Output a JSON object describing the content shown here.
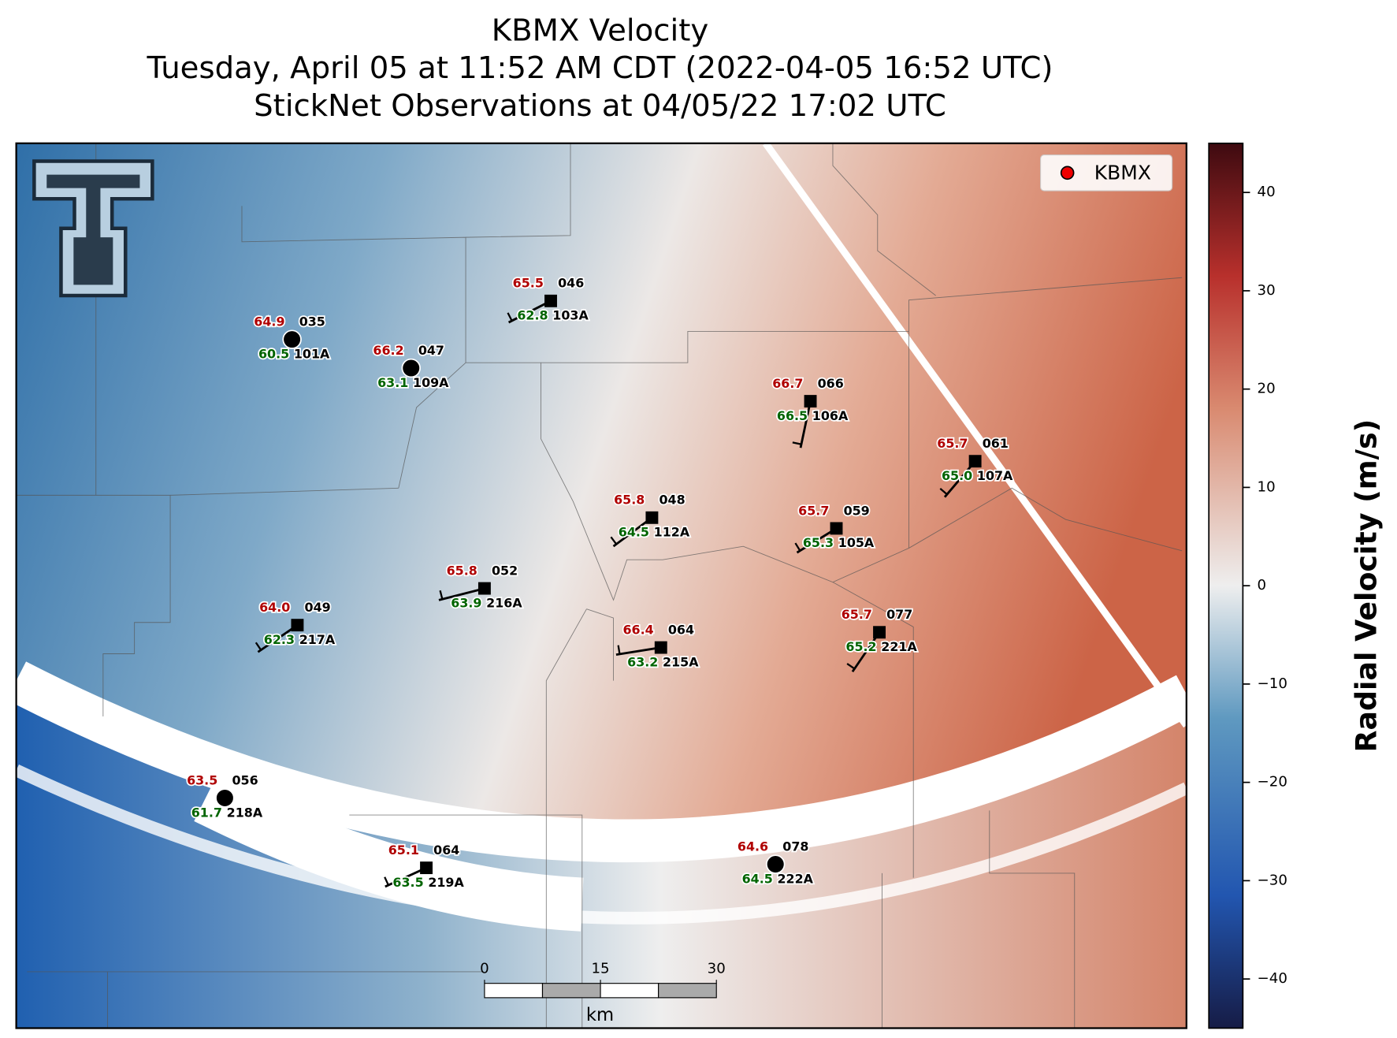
{
  "title": [
    "KBMX Velocity",
    "Tuesday, April 05 at 11:52 AM CDT (2022-04-05 16:52 UTC)",
    "StickNet Observations at 04/05/22 17:02 UTC"
  ],
  "legend": "KBMX",
  "stations": [
    {
      "temp": "64.9",
      "dew": "60.5",
      "code": "035",
      "id": "101A"
    },
    {
      "temp": "66.2",
      "dew": "63.1",
      "code": "047",
      "id": "109A"
    },
    {
      "temp": "65.5",
      "dew": "62.8",
      "code": "046",
      "id": "103A"
    },
    {
      "temp": "66.7",
      "dew": "66.5",
      "code": "066",
      "id": "106A"
    },
    {
      "temp": "65.7",
      "dew": "65.0",
      "code": "061",
      "id": "107A"
    },
    {
      "temp": "65.8",
      "dew": "64.5",
      "code": "048",
      "id": "112A"
    },
    {
      "temp": "65.7",
      "dew": "65.3",
      "code": "059",
      "id": "105A"
    },
    {
      "temp": "65.8",
      "dew": "63.9",
      "code": "052",
      "id": "216A"
    },
    {
      "temp": "64.0",
      "dew": "62.3",
      "code": "049",
      "id": "217A"
    },
    {
      "temp": "66.4",
      "dew": "63.2",
      "code": "064",
      "id": "215A"
    },
    {
      "temp": "65.7",
      "dew": "65.2",
      "code": "077",
      "id": "221A"
    },
    {
      "temp": "63.5",
      "dew": "61.7",
      "code": "056",
      "id": "218A"
    },
    {
      "temp": "65.1",
      "dew": "63.5",
      "code": "064",
      "id": "219A"
    },
    {
      "temp": "64.6",
      "dew": "64.5",
      "code": "078",
      "id": "222A"
    }
  ],
  "scale_bar": {
    "ticks": [
      0,
      15,
      30
    ],
    "unit": "km"
  },
  "colorbar": {
    "label": "Radial Velocity (m/s)",
    "lim": [
      -45,
      45
    ],
    "ticks": [
      {
        "value": -40,
        "label": "−40"
      },
      {
        "value": -30,
        "label": "−30"
      },
      {
        "value": -20,
        "label": "−20"
      },
      {
        "value": -10,
        "label": "−10"
      },
      0,
      10,
      20,
      30,
      40
    ]
  }
}
